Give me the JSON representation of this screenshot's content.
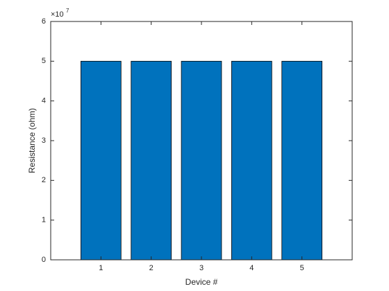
{
  "chart_data": {
    "type": "bar",
    "x_label": "Device #",
    "y_label": "Resistance (ohm)",
    "y_scale_base": "×10",
    "y_scale_exponent": "7",
    "x": [
      1,
      2,
      3,
      4,
      5
    ],
    "values": [
      5,
      5,
      5,
      5,
      5
    ],
    "color": "#0072bd",
    "edge_color": "#000000",
    "xlim": [
      0,
      6
    ],
    "xticks": [
      1,
      2,
      3,
      4,
      5
    ],
    "ylim": [
      0,
      6
    ],
    "yticks": [
      0,
      1,
      2,
      3,
      4,
      5,
      6
    ],
    "grid": false
  }
}
